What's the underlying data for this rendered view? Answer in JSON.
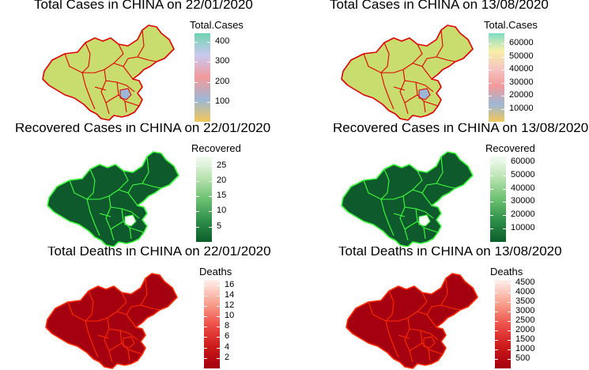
{
  "panels": [
    {
      "id": "p1",
      "title": "Total Cases in CHINA on 22/01/2020",
      "legend": {
        "title": "Total.Cases",
        "ticks": [
          "400",
          "300",
          "200",
          "100"
        ],
        "tick_values": [
          400,
          300,
          200,
          100
        ],
        "min": 0,
        "max": 444,
        "gradient": [
          "#6fd3b0",
          "#c9c9f0",
          "#f29a9a",
          "#9cb7d6",
          "#f2c75a"
        ]
      },
      "map": {
        "fill": "#c9dc6e",
        "border": "#e00000",
        "highlight": "#9cb7d6"
      }
    },
    {
      "id": "p2",
      "title": "Total Cases in CHINA on 13/08/2020",
      "legend": {
        "title": "Total.Cases",
        "ticks": [
          "60000",
          "50000",
          "40000",
          "30000",
          "20000",
          "10000"
        ],
        "tick_values": [
          60000,
          50000,
          40000,
          30000,
          20000,
          10000
        ],
        "min": 0,
        "max": 68000,
        "gradient": [
          "#7fdcc5",
          "#f7f0a8",
          "#f5c6c0",
          "#f29a9a",
          "#9cb7d6",
          "#f2c75a"
        ]
      },
      "map": {
        "fill": "#c9dc6e",
        "border": "#e00000",
        "highlight": "#9cb7d6"
      }
    },
    {
      "id": "p3",
      "title": "Recovered Cases in CHINA on 22/01/2020",
      "legend": {
        "title": "Recovered",
        "ticks": [
          "25",
          "20",
          "15",
          "10",
          "5"
        ],
        "tick_values": [
          25,
          20,
          15,
          10,
          5
        ],
        "min": 0,
        "max": 28,
        "gradient": [
          "#f4fbf2",
          "#b8e3b0",
          "#6cc070",
          "#2e8f4a",
          "#0b5d2a"
        ]
      },
      "map": {
        "fill": "#0e5a2c",
        "border": "#3cff3c",
        "highlight": "#ffffff"
      }
    },
    {
      "id": "p4",
      "title": "Recovered Cases in CHINA on 13/08/2020",
      "legend": {
        "title": "Recovered",
        "ticks": [
          "60000",
          "50000",
          "40000",
          "30000",
          "20000",
          "10000"
        ],
        "tick_values": [
          60000,
          50000,
          40000,
          30000,
          20000,
          10000
        ],
        "min": 0,
        "max": 64000,
        "gradient": [
          "#f4fbf2",
          "#b8e3b0",
          "#6cc070",
          "#2e8f4a",
          "#0b5d2a"
        ]
      },
      "map": {
        "fill": "#0e5a2c",
        "border": "#3cff3c",
        "highlight": "#ffffff"
      }
    },
    {
      "id": "p5",
      "title": "Total Deaths in CHINA on 22/01/2020",
      "legend": {
        "title": "Deaths",
        "ticks": [
          "16",
          "14",
          "12",
          "10",
          "8",
          "6",
          "4",
          "2"
        ],
        "tick_values": [
          16,
          14,
          12,
          10,
          8,
          6,
          4,
          2
        ],
        "min": 0,
        "max": 17,
        "gradient": [
          "#fff0ec",
          "#f9a592",
          "#f0514a",
          "#cc1a1a",
          "#a50010"
        ]
      },
      "map": {
        "fill": "#a50010",
        "border": "#ff2a00",
        "highlight": "#a50010"
      }
    },
    {
      "id": "p6",
      "title": "Total Deaths in CHINA on 13/08/2020",
      "legend": {
        "title": "Deaths",
        "ticks": [
          "4500",
          "4000",
          "3500",
          "3000",
          "2500",
          "2000",
          "1500",
          "1000",
          "500"
        ],
        "tick_values": [
          4500,
          4000,
          3500,
          3000,
          2500,
          2000,
          1500,
          1000,
          500
        ],
        "min": 0,
        "max": 4650,
        "gradient": [
          "#fff0ec",
          "#f9a592",
          "#f0514a",
          "#cc1a1a",
          "#a50010"
        ]
      },
      "map": {
        "fill": "#a50010",
        "border": "#ff2a00",
        "highlight": "#a50010"
      }
    }
  ]
}
